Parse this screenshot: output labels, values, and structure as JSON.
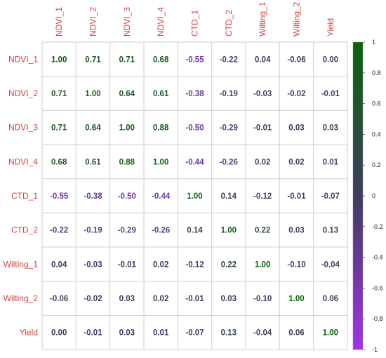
{
  "chart_data": {
    "type": "heatmap",
    "variables": [
      "NDVI_1",
      "NDVI_2",
      "NDVI_3",
      "NDVI_4",
      "CTD_1",
      "CTD_2",
      "Wilting_1",
      "Wilting_2",
      "Yield"
    ],
    "matrix": [
      [
        1.0,
        0.71,
        0.71,
        0.68,
        -0.55,
        -0.22,
        0.04,
        -0.06,
        0.0
      ],
      [
        0.71,
        1.0,
        0.64,
        0.61,
        -0.38,
        -0.19,
        -0.03,
        -0.02,
        -0.01
      ],
      [
        0.71,
        0.64,
        1.0,
        0.88,
        -0.5,
        -0.29,
        -0.01,
        0.03,
        0.03
      ],
      [
        0.68,
        0.61,
        0.88,
        1.0,
        -0.44,
        -0.26,
        0.02,
        0.02,
        0.01
      ],
      [
        -0.55,
        -0.38,
        -0.5,
        -0.44,
        1.0,
        0.14,
        -0.12,
        -0.01,
        -0.07
      ],
      [
        -0.22,
        -0.19,
        -0.29,
        -0.26,
        0.14,
        1.0,
        0.22,
        0.03,
        0.13
      ],
      [
        0.04,
        -0.03,
        -0.01,
        0.02,
        -0.12,
        0.22,
        1.0,
        -0.1,
        -0.04
      ],
      [
        -0.06,
        -0.02,
        0.03,
        0.02,
        -0.01,
        0.03,
        -0.1,
        1.0,
        0.06
      ],
      [
        0.0,
        -0.01,
        0.03,
        0.01,
        -0.07,
        0.13,
        -0.04,
        0.06,
        1.0
      ]
    ],
    "colorbar": {
      "range": [
        -1,
        1
      ],
      "ticks": [
        1,
        0.8,
        0.6,
        0.4,
        0.2,
        0,
        -0.2,
        -0.4,
        -0.6,
        -0.8,
        -1
      ],
      "colors": {
        "high": "#0a640a",
        "mid": "#3d3d5e",
        "low": "#a632e6"
      }
    },
    "label_color": "#d0433a",
    "grid_color": "#cfcfcf"
  }
}
